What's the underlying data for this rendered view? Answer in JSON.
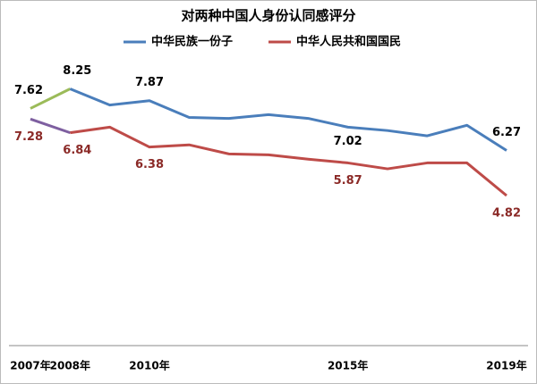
{
  "chart_data": {
    "type": "line",
    "title": "对两种中国人身份认同感评分",
    "categories": [
      "2007年",
      "2008年",
      null,
      "2010年",
      null,
      null,
      null,
      null,
      "2015年",
      null,
      null,
      null,
      "2019年"
    ],
    "series": [
      {
        "name": "中华民族一份子",
        "color": "#4a7ebb",
        "first_segment_color": "#9bbb59",
        "values": [
          7.62,
          8.25,
          7.73,
          7.87,
          7.33,
          7.3,
          7.42,
          7.3,
          7.02,
          6.91,
          6.74,
          7.08,
          6.27
        ]
      },
      {
        "name": "中华人民共和国国民",
        "color": "#be4b48",
        "first_segment_color": "#7e5fa0",
        "values": [
          7.28,
          6.84,
          7.02,
          6.38,
          6.45,
          6.16,
          6.13,
          5.99,
          5.87,
          5.68,
          5.87,
          5.87,
          4.82
        ]
      }
    ],
    "ylim": [
      0,
      10
    ]
  }
}
